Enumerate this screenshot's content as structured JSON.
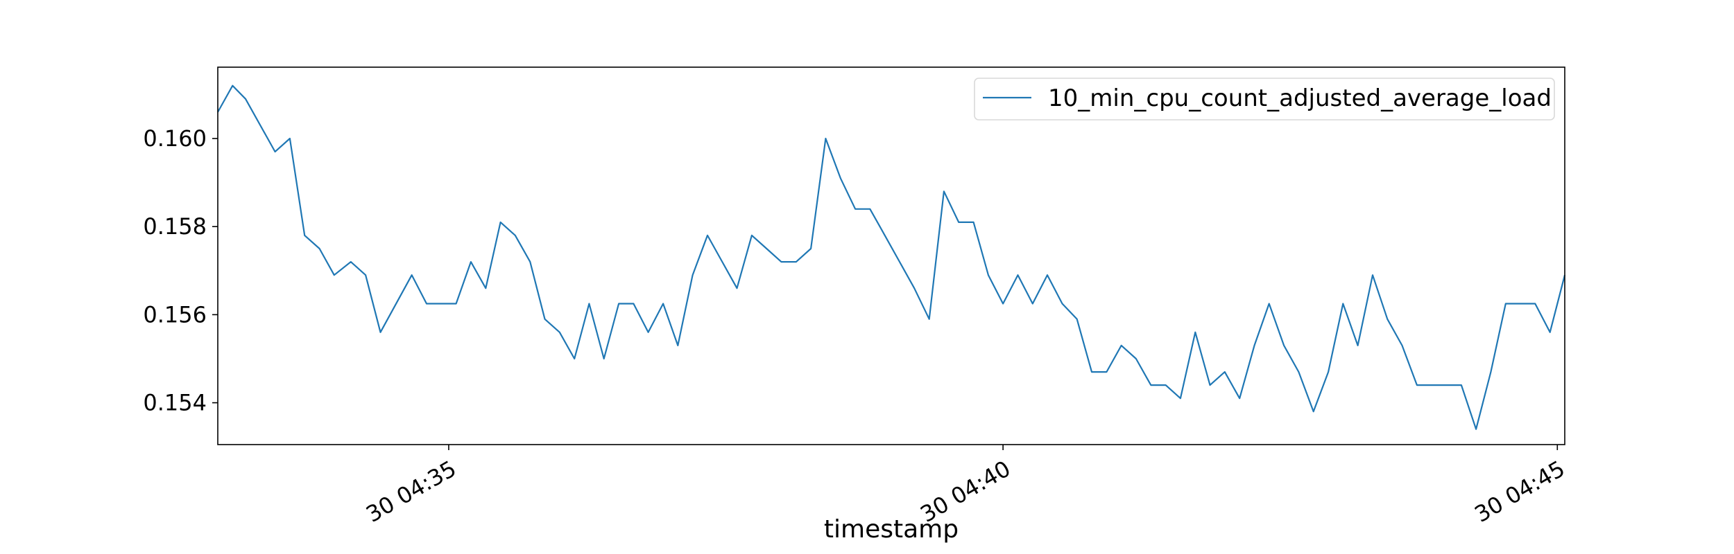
{
  "chart_data": {
    "type": "line",
    "xlabel": "timestamp",
    "ylabel": "",
    "title": "",
    "x_tick_labels": [
      "30 04:35",
      "30 04:40",
      "30 04:45"
    ],
    "y_tick_labels": [
      "0.154",
      "0.156",
      "0.158",
      "0.160"
    ],
    "y_ticks": [
      0.154,
      0.156,
      0.158,
      0.16
    ],
    "x_ticks_min": [
      2.083,
      7.083,
      12.083
    ],
    "x_range_min": [
      0.0,
      12.15
    ],
    "ylim": [
      0.15305,
      0.16162
    ],
    "legend_position": "top-right",
    "grid": false,
    "color": "#1f77b4",
    "series": [
      {
        "name": "10_min_cpu_count_adjusted_average_load",
        "x_min": [
          0.0,
          0.133,
          0.25,
          0.517,
          0.65,
          0.783,
          0.917,
          1.05,
          1.2,
          1.333,
          1.467,
          1.75,
          1.883,
          2.083,
          2.15,
          2.283,
          2.417,
          2.55,
          2.683,
          2.817,
          2.95,
          3.083,
          3.217,
          3.35,
          3.483,
          3.617,
          3.75,
          3.883,
          4.017,
          4.15,
          4.283,
          4.417,
          4.55,
          4.683,
          4.817,
          4.95,
          5.083,
          5.217,
          5.35,
          5.483,
          5.617,
          5.75,
          5.883,
          6.017,
          6.15,
          6.283,
          6.417,
          6.55,
          6.683,
          6.817,
          6.95,
          7.083,
          7.217,
          7.35,
          7.483,
          7.617,
          7.75,
          7.883,
          8.017,
          8.15,
          8.283,
          8.417,
          8.55,
          8.683,
          8.817,
          8.95,
          9.083,
          9.217,
          9.35,
          9.483,
          9.617,
          9.75,
          9.883,
          10.017,
          10.15,
          10.283,
          10.417,
          10.55,
          10.683,
          10.817,
          10.95,
          11.083,
          11.217,
          11.35,
          11.483,
          11.617,
          11.75,
          11.883,
          12.017,
          12.15
        ],
        "values": [
          0.1606,
          0.1612,
          0.1609,
          0.1597,
          0.16,
          0.1578,
          0.1575,
          0.1569,
          0.1572,
          0.1569,
          0.1556,
          0.1569,
          0.15625,
          0.15625,
          0.15625,
          0.1572,
          0.1566,
          0.1581,
          0.1578,
          0.1572,
          0.1559,
          0.1556,
          0.155,
          0.15625,
          0.155,
          0.15625,
          0.15625,
          0.1556,
          0.15625,
          0.1553,
          0.1569,
          0.1578,
          0.1572,
          0.1566,
          0.1578,
          0.1575,
          0.1572,
          0.1572,
          0.1575,
          0.16,
          0.1591,
          0.1584,
          0.1584,
          0.1578,
          0.1572,
          0.1566,
          0.1559,
          0.1588,
          0.1581,
          0.1581,
          0.1569,
          0.15625,
          0.1569,
          0.15625,
          0.1569,
          0.15625,
          0.1559,
          0.1547,
          0.1547,
          0.1553,
          0.155,
          0.1544,
          0.1544,
          0.1541,
          0.1556,
          0.1544,
          0.1547,
          0.1541,
          0.1553,
          0.15625,
          0.1553,
          0.1547,
          0.1538,
          0.1547,
          0.15625,
          0.1553,
          0.1569,
          0.1559,
          0.1553,
          0.1544,
          0.1544,
          0.1544,
          0.1544,
          0.1534,
          0.1547,
          0.15625,
          0.15625,
          0.15625,
          0.1556,
          0.1569
        ]
      }
    ]
  }
}
